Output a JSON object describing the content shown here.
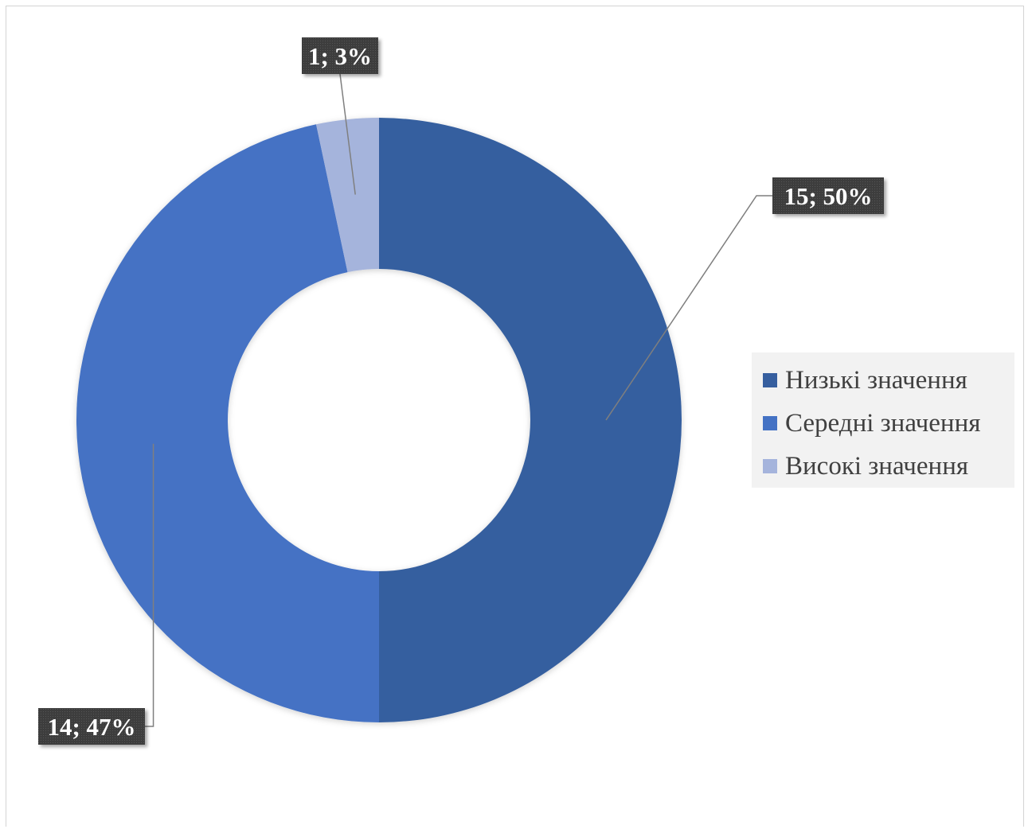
{
  "chart_data": {
    "type": "pie",
    "variant": "donut",
    "title": "",
    "series": [
      {
        "values": [
          15,
          14,
          1
        ],
        "percent_labels": [
          "50%",
          "47%",
          "3%"
        ],
        "data_labels": [
          "15; 50%",
          "14; 47%",
          "1; 3%"
        ]
      }
    ],
    "categories": [
      "Низькі значення",
      "Середні значення",
      "Високі значення"
    ],
    "colors": [
      "#365f9f",
      "#4472c4",
      "#a5b4dc"
    ],
    "legend": {
      "position": "right"
    }
  }
}
